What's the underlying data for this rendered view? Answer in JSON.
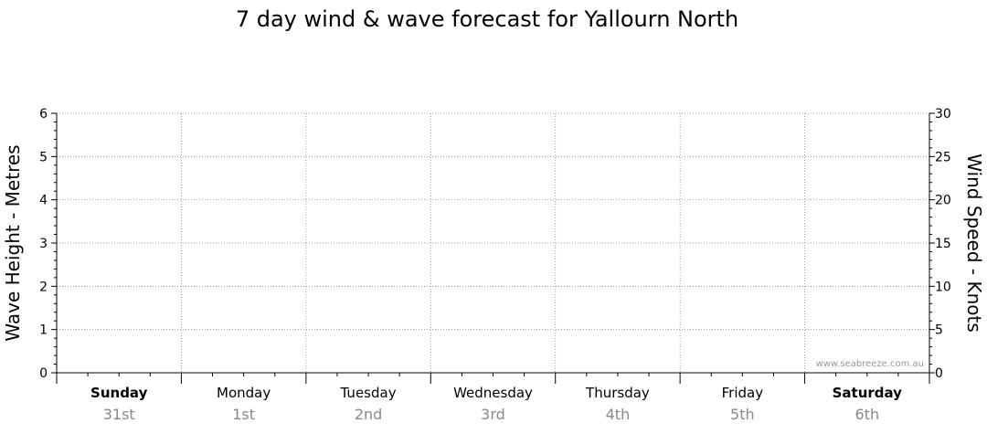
{
  "chart_data": {
    "type": "line",
    "title": "7 day wind & wave forecast for Yallourn North",
    "y_left": {
      "label": "Wave Height - Metres",
      "range": [
        0,
        6
      ],
      "ticks": [
        "0",
        "1",
        "2",
        "3",
        "4",
        "5",
        "6"
      ]
    },
    "y_right": {
      "label": "Wind Speed - Knots",
      "range": [
        0,
        30
      ],
      "ticks": [
        "0",
        "5",
        "10",
        "15",
        "20",
        "25",
        "30"
      ]
    },
    "days": [
      {
        "name": "Sunday",
        "date": "31st",
        "bold": true
      },
      {
        "name": "Monday",
        "date": "1st",
        "bold": false
      },
      {
        "name": "Tuesday",
        "date": "2nd",
        "bold": false
      },
      {
        "name": "Wednesday",
        "date": "3rd",
        "bold": false
      },
      {
        "name": "Thursday",
        "date": "4th",
        "bold": false
      },
      {
        "name": "Friday",
        "date": "5th",
        "bold": false
      },
      {
        "name": "Saturday",
        "date": "6th",
        "bold": true
      }
    ],
    "series": [],
    "grid": true,
    "watermark": "www.seabreeze.com.au"
  }
}
